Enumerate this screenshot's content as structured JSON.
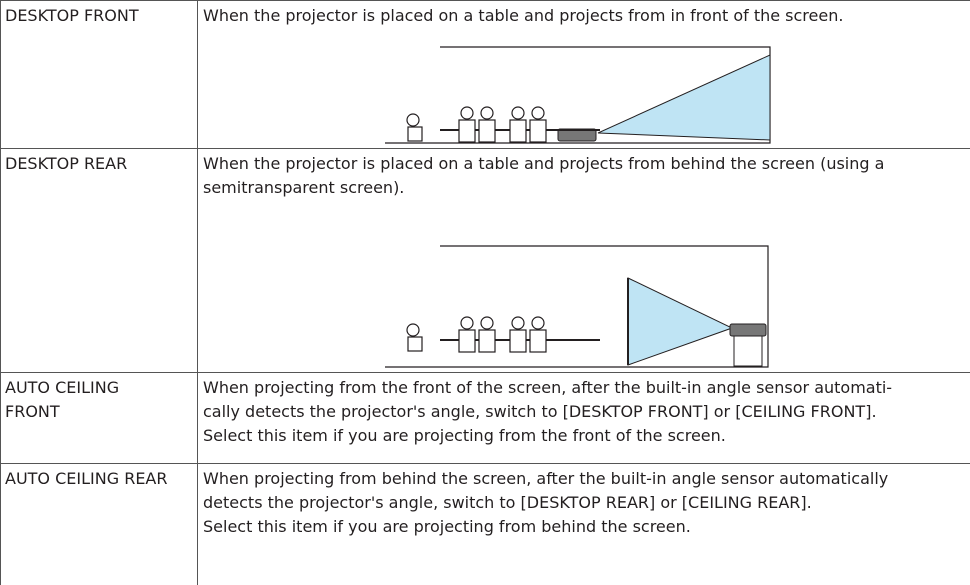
{
  "rows": [
    {
      "name": [
        "DESKTOP FRONT"
      ],
      "description": [
        "When the projector is placed on a table and projects from in front of the screen."
      ]
    },
    {
      "name": [
        "DESKTOP REAR"
      ],
      "description": [
        "When the projector is placed on a table and projects from behind the screen (using a",
        "semitransparent screen)."
      ]
    },
    {
      "name": [
        "AUTO CEILING",
        "FRONT"
      ],
      "description": [
        "When projecting from the front of the screen, after the built-in angle sensor automati-",
        "cally detects the projector's angle, switch to [DESKTOP FRONT] or [CEILING FRONT].",
        "Select this item if you are projecting from the front of the screen."
      ]
    },
    {
      "name": [
        "AUTO CEILING REAR"
      ],
      "description": [
        "When projecting from behind the screen, after the built-in angle sensor automatically",
        "detects the projector's angle, switch to [DESKTOP REAR] or [CEILING REAR].",
        "Select this item if you are projecting from behind the screen."
      ]
    }
  ]
}
